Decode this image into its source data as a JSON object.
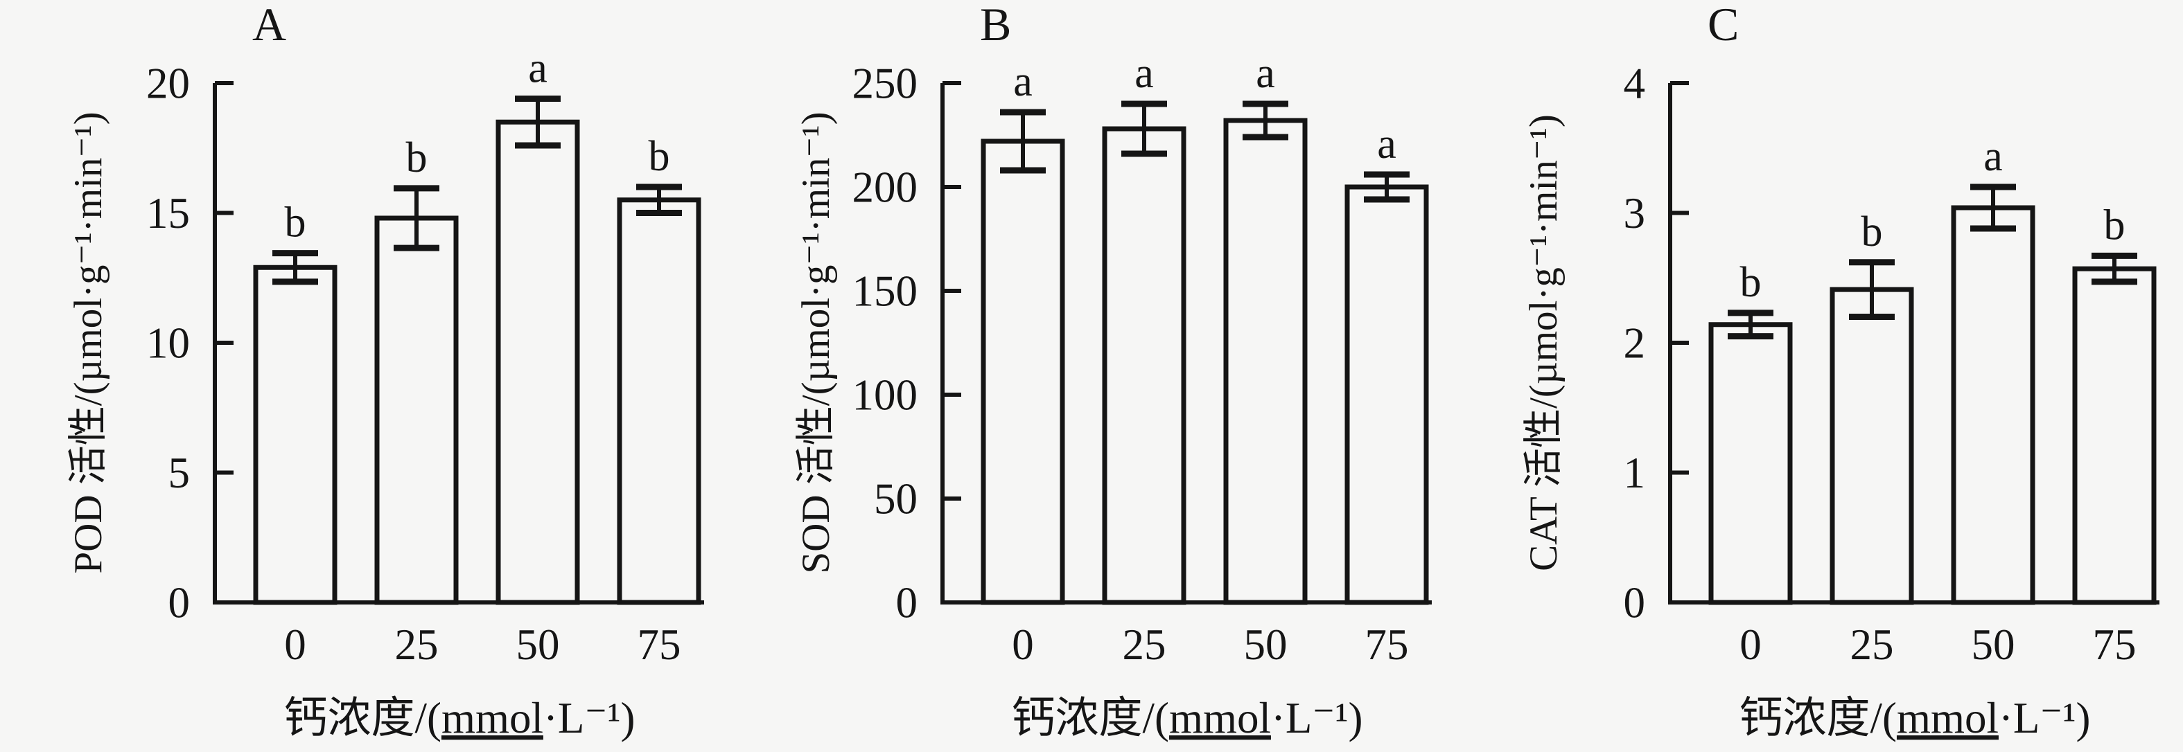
{
  "figure": {
    "background": "#f6f6f5",
    "ink": "#151515",
    "panel_labels": [
      "A",
      "B",
      "C"
    ]
  },
  "chart_data": [
    {
      "type": "bar",
      "panel_label": "A",
      "title": "",
      "categories": [
        "0",
        "25",
        "50",
        "75"
      ],
      "values": [
        12.9,
        14.8,
        18.5,
        15.5
      ],
      "errors": [
        0.55,
        1.15,
        0.9,
        0.5
      ],
      "sig_letters": [
        "b",
        "b",
        "a",
        "b"
      ],
      "xlabel": "钙浓度/(mmol·L⁻¹)",
      "xlabel_underline": "mmol",
      "ylabel": "POD 活性/(µmol·g⁻¹·min⁻¹)",
      "ylim": [
        0,
        20
      ],
      "yticks": [
        0,
        5,
        10,
        15,
        20
      ],
      "bar_fill": "#f6f6f5",
      "grid": false,
      "legend": "none"
    },
    {
      "type": "bar",
      "panel_label": "B",
      "title": "",
      "categories": [
        "0",
        "25",
        "50",
        "75"
      ],
      "values": [
        222,
        228,
        232,
        200
      ],
      "errors": [
        14,
        12,
        8,
        6
      ],
      "sig_letters": [
        "a",
        "a",
        "a",
        "a"
      ],
      "xlabel": "钙浓度/(mmol·L⁻¹)",
      "xlabel_underline": "mmol",
      "ylabel": "SOD 活性/(µmol·g⁻¹·min⁻¹)",
      "ylim": [
        0,
        250
      ],
      "yticks": [
        0,
        50,
        100,
        150,
        200,
        250
      ],
      "bar_fill": "#f6f6f5",
      "grid": false,
      "legend": "none"
    },
    {
      "type": "bar",
      "panel_label": "C",
      "title": "",
      "categories": [
        "0",
        "25",
        "50",
        "75"
      ],
      "values": [
        2.14,
        2.41,
        3.04,
        2.57
      ],
      "errors": [
        0.09,
        0.21,
        0.16,
        0.1
      ],
      "sig_letters": [
        "b",
        "b",
        "a",
        "b"
      ],
      "xlabel": "钙浓度/(mmol·L⁻¹)",
      "xlabel_underline": "mmol",
      "ylabel": "CAT 活性/(µmol·g⁻¹·min⁻¹)",
      "ylim": [
        0,
        4
      ],
      "yticks": [
        0,
        1,
        2,
        3,
        4
      ],
      "bar_fill": "#f6f6f5",
      "grid": false,
      "legend": "none"
    }
  ]
}
